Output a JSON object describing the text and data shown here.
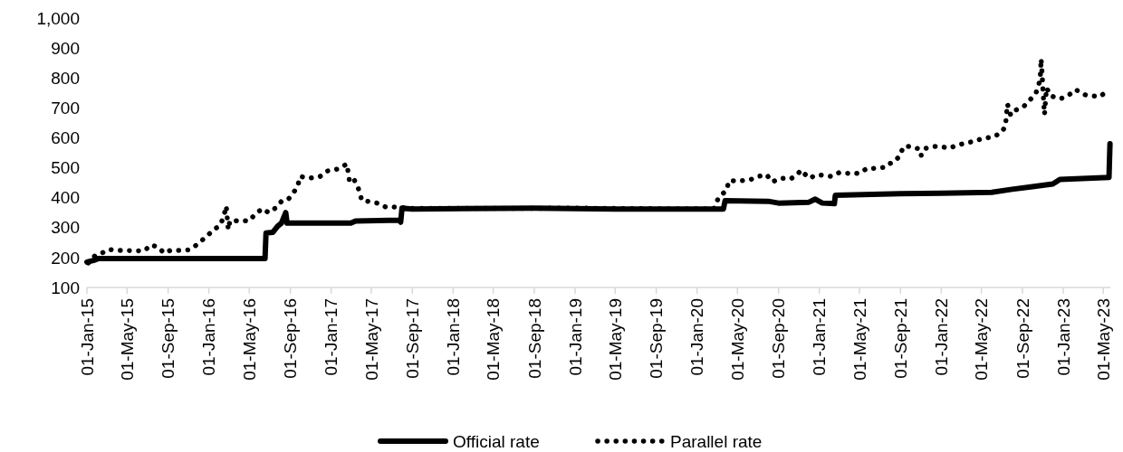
{
  "chart_data": {
    "type": "line",
    "xlim": [
      "2015-01-01",
      "2023-05-22"
    ],
    "xticks": [
      {
        "value": "2015-01-01",
        "label": "01-Jan-15"
      },
      {
        "value": "2015-05-01",
        "label": "01-May-15"
      },
      {
        "value": "2015-09-01",
        "label": "01-Sep-15"
      },
      {
        "value": "2016-01-01",
        "label": "01-Jan-16"
      },
      {
        "value": "2016-05-01",
        "label": "01-May-16"
      },
      {
        "value": "2016-09-01",
        "label": "01-Sep-16"
      },
      {
        "value": "2017-01-01",
        "label": "01-Jan-17"
      },
      {
        "value": "2017-05-01",
        "label": "01-May-17"
      },
      {
        "value": "2017-09-01",
        "label": "01-Sep-17"
      },
      {
        "value": "2018-01-01",
        "label": "01-Jan-18"
      },
      {
        "value": "2018-05-01",
        "label": "01-May-18"
      },
      {
        "value": "2018-09-01",
        "label": "01-Sep-18"
      },
      {
        "value": "2019-01-01",
        "label": "01-Jan-19"
      },
      {
        "value": "2019-05-01",
        "label": "01-May-19"
      },
      {
        "value": "2019-09-01",
        "label": "01-Sep-19"
      },
      {
        "value": "2020-01-01",
        "label": "01-Jan-20"
      },
      {
        "value": "2020-05-01",
        "label": "01-May-20"
      },
      {
        "value": "2020-09-01",
        "label": "01-Sep-20"
      },
      {
        "value": "2021-01-01",
        "label": "01-Jan-21"
      },
      {
        "value": "2021-05-01",
        "label": "01-May-21"
      },
      {
        "value": "2021-09-01",
        "label": "01-Sep-21"
      },
      {
        "value": "2022-01-01",
        "label": "01-Jan-22"
      },
      {
        "value": "2022-05-01",
        "label": "01-May-22"
      },
      {
        "value": "2022-09-01",
        "label": "01-Sep-22"
      },
      {
        "value": "2023-01-01",
        "label": "01-Jan-23"
      },
      {
        "value": "2023-05-01",
        "label": "01-May-23"
      }
    ],
    "ylim": [
      100,
      1000
    ],
    "yticks": [
      100,
      200,
      300,
      400,
      500,
      600,
      700,
      800,
      900,
      {
        "value": 1000,
        "label": "1,000"
      }
    ],
    "grid": false,
    "legend": "bottom",
    "marker": "none",
    "series": [
      {
        "name": "Official rate",
        "color": "#000000",
        "line_style": "solid",
        "x": [
          "2015-01-01",
          "2015-01-20",
          "2015-02-05",
          "2016-06-17",
          "2016-06-20",
          "2016-07-10",
          "2016-07-25",
          "2016-08-05",
          "2016-08-18",
          "2016-08-22",
          "2017-03-01",
          "2017-03-15",
          "2017-07-25",
          "2017-07-28",
          "2017-08-01",
          "2017-09-01",
          "2018-09-01",
          "2019-05-01",
          "2020-03-20",
          "2020-03-25",
          "2020-08-01",
          "2020-09-01",
          "2020-12-01",
          "2020-12-20",
          "2021-01-10",
          "2021-02-15",
          "2021-02-18",
          "2021-09-01",
          "2022-01-01",
          "2022-06-01",
          "2022-08-01",
          "2022-10-01",
          "2022-12-01",
          "2022-12-22",
          "2023-05-18",
          "2023-05-21"
        ],
        "values": [
          185,
          190,
          197,
          197,
          282,
          284,
          305,
          315,
          350,
          315,
          315,
          322,
          325,
          318,
          365,
          362,
          365,
          362,
          362,
          390,
          388,
          382,
          385,
          395,
          382,
          380,
          408,
          413,
          415,
          418,
          428,
          437,
          446,
          461,
          468,
          580
        ]
      },
      {
        "name": "Parallel rate",
        "color": "#000000",
        "line_style": "dotted",
        "x": [
          "2015-01-05",
          "2015-01-25",
          "2015-02-15",
          "2015-03-06",
          "2015-03-30",
          "2015-04-29",
          "2015-05-28",
          "2015-06-24",
          "2015-07-10",
          "2015-08-01",
          "2015-08-20",
          "2015-09-08",
          "2015-10-05",
          "2015-11-04",
          "2015-11-25",
          "2015-12-17",
          "2016-01-16",
          "2016-02-04",
          "2016-02-14",
          "2016-02-22",
          "2016-02-28",
          "2016-03-04",
          "2016-03-31",
          "2016-05-02",
          "2016-05-18",
          "2016-06-09",
          "2016-06-28",
          "2016-07-19",
          "2016-08-07",
          "2016-08-26",
          "2016-09-22",
          "2016-09-30",
          "2016-10-27",
          "2016-11-29",
          "2016-12-20",
          "2017-01-08",
          "2017-01-27",
          "2017-02-17",
          "2017-02-25",
          "2017-03-10",
          "2017-03-23",
          "2017-04-03",
          "2017-04-25",
          "2017-05-22",
          "2017-06-13",
          "2017-07-07",
          "2017-09-01",
          "2018-05-01",
          "2019-01-01",
          "2019-09-01",
          "2020-02-20",
          "2020-03-05",
          "2020-03-30",
          "2020-04-05",
          "2020-05-05",
          "2020-06-06",
          "2020-07-03",
          "2020-07-27",
          "2020-08-13",
          "2020-09-09",
          "2020-10-06",
          "2020-10-27",
          "2020-11-07",
          "2020-12-01",
          "2020-12-28",
          "2021-02-06",
          "2021-03-02",
          "2021-04-01",
          "2021-04-30",
          "2021-05-24",
          "2021-06-12",
          "2021-07-12",
          "2021-07-20",
          "2021-08-10",
          "2021-08-29",
          "2021-09-10",
          "2021-10-03",
          "2021-10-31",
          "2021-11-02",
          "2021-11-16",
          "2021-12-10",
          "2021-12-31",
          "2022-01-24",
          "2022-02-17",
          "2022-03-13",
          "2022-04-09",
          "2022-05-05",
          "2022-06-01",
          "2022-06-28",
          "2022-07-12",
          "2022-07-18",
          "2022-07-28",
          "2022-08-13",
          "2022-09-06",
          "2022-09-22",
          "2022-10-11",
          "2022-10-20",
          "2022-10-24",
          "2022-10-27",
          "2022-10-29",
          "2022-10-31",
          "2022-11-02",
          "2022-11-04",
          "2022-11-06",
          "2022-11-12",
          "2022-11-25",
          "2022-12-22",
          "2023-01-15",
          "2023-02-07",
          "2023-03-09",
          "2023-03-30",
          "2023-04-20",
          "2023-05-15"
        ],
        "values": [
          182,
          206,
          215,
          227,
          224,
          224,
          222,
          224,
          242,
          236,
          215,
          224,
          224,
          226,
          242,
          263,
          293,
          308,
          336,
          372,
          293,
          323,
          323,
          323,
          345,
          363,
          350,
          366,
          390,
          395,
          435,
          471,
          465,
          471,
          489,
          492,
          498,
          513,
          453,
          462,
          432,
          390,
          387,
          381,
          369,
          369,
          364,
          364,
          365,
          363,
          363,
          399,
          426,
          456,
          456,
          459,
          471,
          477,
          453,
          465,
          462,
          477,
          492,
          465,
          477,
          471,
          484,
          481,
          481,
          498,
          498,
          501,
          511,
          517,
          538,
          571,
          571,
          561,
          541,
          565,
          571,
          571,
          565,
          575,
          582,
          588,
          598,
          602,
          615,
          638,
          713,
          675,
          693,
          706,
          725,
          748,
          779,
          795,
          864,
          828,
          789,
          748,
          713,
          678,
          767,
          740,
          730,
          740,
          761,
          743,
          740,
          737,
          758
        ]
      }
    ]
  }
}
